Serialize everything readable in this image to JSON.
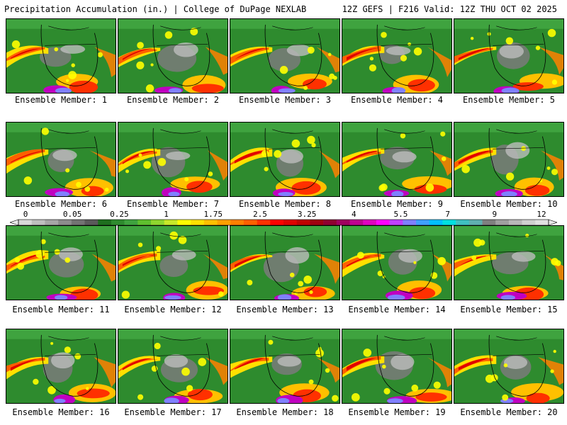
{
  "header": {
    "left": "Precipitation Accumulation (in.) | College of DuPage NEXLAB",
    "right": "12Z GEFS | F216 Valid: 12Z THU OCT 02 2025"
  },
  "panels": [
    {
      "label": "Ensemble Member: 1"
    },
    {
      "label": "Ensemble Member: 2"
    },
    {
      "label": "Ensemble Member: 3"
    },
    {
      "label": "Ensemble Member: 4"
    },
    {
      "label": "Ensemble Member: 5"
    },
    {
      "label": "Ensemble Member: 6"
    },
    {
      "label": "Ensemble Member: 7"
    },
    {
      "label": "Ensemble Member: 8"
    },
    {
      "label": "Ensemble Member: 9"
    },
    {
      "label": "Ensemble Member: 10"
    },
    {
      "label": "Ensemble Member: 11"
    },
    {
      "label": "Ensemble Member: 12"
    },
    {
      "label": "Ensemble Member: 13"
    },
    {
      "label": "Ensemble Member: 14"
    },
    {
      "label": "Ensemble Member: 15"
    },
    {
      "label": "Ensemble Member: 16"
    },
    {
      "label": "Ensemble Member: 17"
    },
    {
      "label": "Ensemble Member: 18"
    },
    {
      "label": "Ensemble Member: 19"
    },
    {
      "label": "Ensemble Member: 20"
    }
  ],
  "colorbar": {
    "labels": [
      "0",
      "0.05",
      "0.25",
      "1",
      "1.75",
      "2.5",
      "3.25",
      "4",
      "5.5",
      "7",
      "9",
      "12"
    ],
    "colors": [
      "#d8d8d8",
      "#bfbfbf",
      "#a6a6a6",
      "#8c8c8c",
      "#737373",
      "#5a5a5a",
      "#1e6f1e",
      "#2e8b2e",
      "#3fa33f",
      "#5fbf2f",
      "#8fd62f",
      "#c8e82a",
      "#ffff00",
      "#ffe000",
      "#ffc000",
      "#ffa000",
      "#ff8000",
      "#ff6000",
      "#ff3000",
      "#ff0000",
      "#e00000",
      "#c00000",
      "#a00010",
      "#900030",
      "#a00060",
      "#c00090",
      "#e000c0",
      "#ff00ff",
      "#c040ff",
      "#8080ff",
      "#40a0ff",
      "#00c0ff",
      "#00e0e0",
      "#40c0c0",
      "#60b0b0",
      "#808080",
      "#a0a0a0",
      "#b8b8b8",
      "#d0d0d0",
      "#e0e0e0"
    ]
  }
}
